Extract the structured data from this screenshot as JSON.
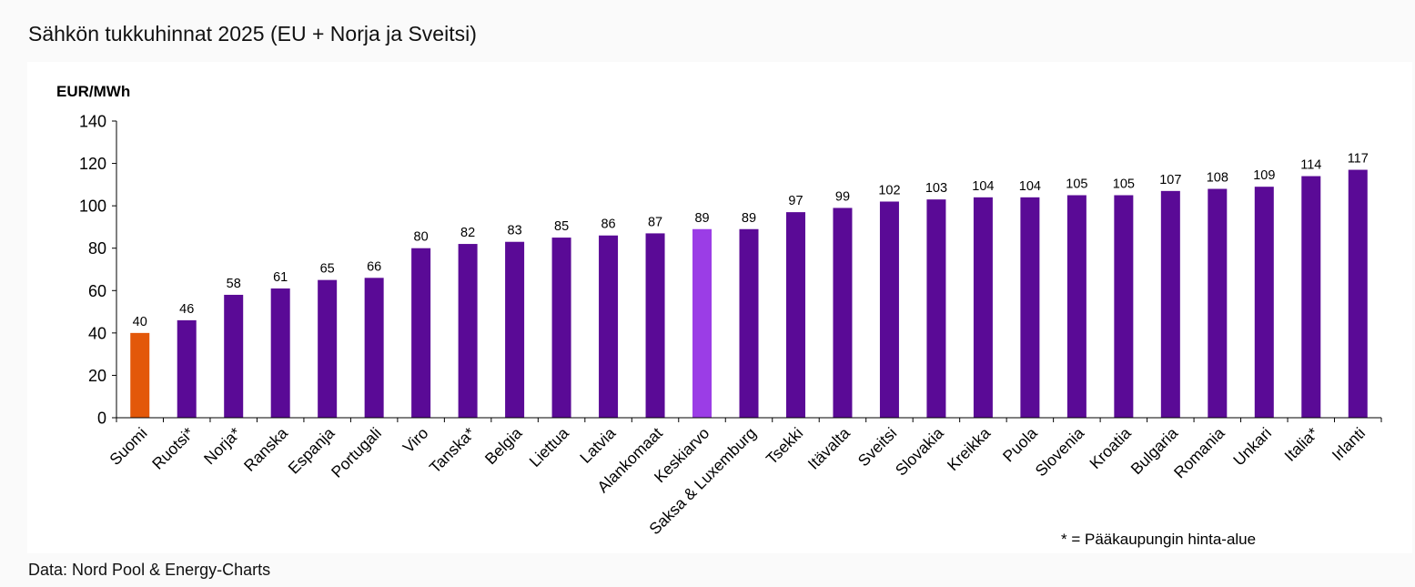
{
  "title": "Sähkön tukkuhinnat 2025 (EU + Norja ja Sveitsi)",
  "source": "Data: Nord Pool & Energy-Charts",
  "footnote": "* = Pääkaupungin hinta-alue",
  "colors": {
    "default_bar": "#5a0a96",
    "highlight_finland": "#e3580a",
    "highlight_average": "#9b3de6"
  },
  "chart_data": {
    "type": "bar",
    "ylabel": "EUR/MWh",
    "ylim": [
      0,
      140
    ],
    "yticks": [
      0,
      20,
      40,
      60,
      80,
      100,
      120,
      140
    ],
    "grid": false,
    "categories": [
      "Suomi",
      "Ruotsi*",
      "Norja*",
      "Ranska",
      "Espanja",
      "Portugali",
      "Viro",
      "Tanska*",
      "Belgia",
      "Liettua",
      "Latvia",
      "Alankomaat",
      "Keskiarvo",
      "Saksa & Luxemburg",
      "Tsekki",
      "Itävalta",
      "Sveitsi",
      "Slovakia",
      "Kreikka",
      "Puola",
      "Slovenia",
      "Kroatia",
      "Bulgaria",
      "Romania",
      "Unkari",
      "Italia*",
      "Irlanti"
    ],
    "values": [
      40,
      46,
      58,
      61,
      65,
      66,
      80,
      82,
      83,
      85,
      86,
      87,
      89,
      89,
      97,
      99,
      102,
      103,
      104,
      104,
      105,
      105,
      107,
      108,
      109,
      114,
      117
    ],
    "bar_colors": [
      "#e3580a",
      "#5a0a96",
      "#5a0a96",
      "#5a0a96",
      "#5a0a96",
      "#5a0a96",
      "#5a0a96",
      "#5a0a96",
      "#5a0a96",
      "#5a0a96",
      "#5a0a96",
      "#5a0a96",
      "#9b3de6",
      "#5a0a96",
      "#5a0a96",
      "#5a0a96",
      "#5a0a96",
      "#5a0a96",
      "#5a0a96",
      "#5a0a96",
      "#5a0a96",
      "#5a0a96",
      "#5a0a96",
      "#5a0a96",
      "#5a0a96",
      "#5a0a96",
      "#5a0a96"
    ]
  }
}
